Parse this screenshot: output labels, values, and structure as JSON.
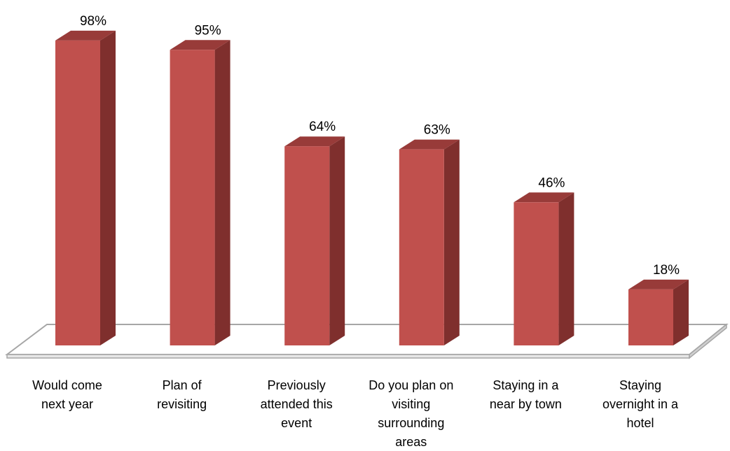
{
  "chart_data": {
    "type": "bar",
    "three_d": true,
    "categories": [
      [
        "Would come",
        "next year"
      ],
      [
        "Plan of",
        "revisiting"
      ],
      [
        "Previously",
        "attended this",
        "event"
      ],
      [
        "Do you plan on",
        "visiting",
        "surrounding",
        "areas"
      ],
      [
        "Staying in a",
        "near by town"
      ],
      [
        "Staying",
        "overnight in a",
        "hotel"
      ]
    ],
    "values": [
      98,
      95,
      64,
      63,
      46,
      18
    ],
    "data_labels": [
      "98%",
      "95%",
      "64%",
      "63%",
      "46%",
      "18%"
    ],
    "value_unit": "%",
    "ylim": [
      0,
      100
    ],
    "grid": false,
    "legend": "none",
    "colors": {
      "bar_front": "#c0504d",
      "bar_side": "#7f2f2d",
      "bar_top": "#983b39",
      "floor_stroke": "#a6a6a6",
      "floor_fill": "#ffffff"
    }
  }
}
